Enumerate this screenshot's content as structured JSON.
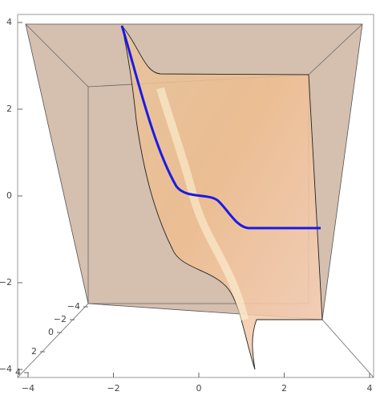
{
  "left_axis_ticks": [
    "4",
    "2",
    "0",
    "−2",
    "−4"
  ],
  "bottom_axis_ticks": [
    "−4",
    "−2",
    "0",
    "2",
    "4"
  ],
  "depth_axis_ticks": [
    "−4",
    "−2",
    "0",
    "2",
    "4"
  ]
}
